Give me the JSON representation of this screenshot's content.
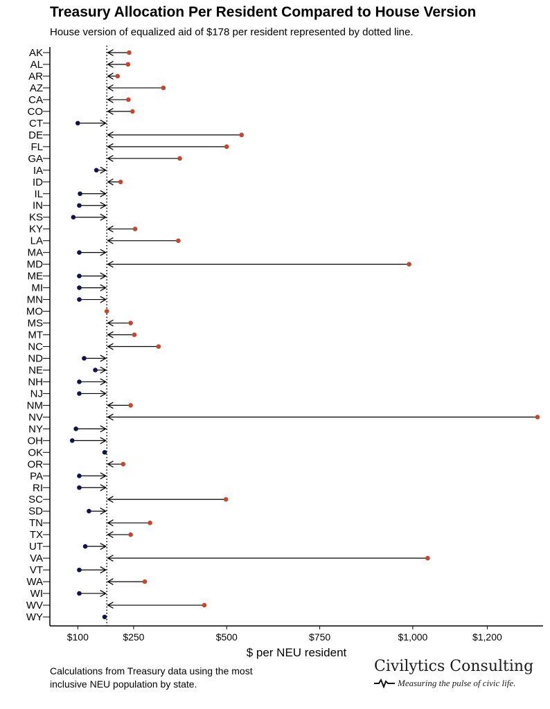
{
  "header": {
    "title": "Treasury Allocation Per Resident Compared to House Version",
    "subtitle": "House version of equalized aid of $178 per resident represented by dotted line."
  },
  "footer": {
    "note_line1": "Calculations from Treasury data using the most",
    "note_line2": "inclusive NEU population by state.",
    "brand_name": "Civilytics Consulting",
    "brand_tagline": "Measuring the pulse of civic life."
  },
  "colors": {
    "above": "#c8452a",
    "below": "#12124f",
    "line": "#000000"
  },
  "chart_data": {
    "type": "dot-arrow",
    "title": "Treasury Allocation Per Resident Compared to House Version",
    "subtitle": "House version of equalized aid of $178 per resident represented by dotted line.",
    "xlabel": "$ per NEU resident",
    "ylabel": "",
    "reference_value": 178,
    "xlim": [
      25,
      1350
    ],
    "x_ticks": [
      100,
      250,
      500,
      750,
      1000,
      1200
    ],
    "x_tick_labels": [
      "$100",
      "$250",
      "$500",
      "$750",
      "$1,000",
      "$1,200"
    ],
    "categories": [
      "AK",
      "AL",
      "AR",
      "AZ",
      "CA",
      "CO",
      "CT",
      "DE",
      "FL",
      "GA",
      "IA",
      "ID",
      "IL",
      "IN",
      "KS",
      "KY",
      "LA",
      "MA",
      "MD",
      "ME",
      "MI",
      "MN",
      "MO",
      "MS",
      "MT",
      "NC",
      "ND",
      "NE",
      "NH",
      "NJ",
      "NM",
      "NV",
      "NY",
      "OH",
      "OK",
      "OR",
      "PA",
      "RI",
      "SC",
      "SD",
      "TN",
      "TX",
      "UT",
      "VA",
      "VT",
      "WA",
      "WI",
      "WV",
      "WY"
    ],
    "values": [
      238,
      235,
      207,
      330,
      236,
      247,
      100,
      540,
      500,
      374,
      150,
      215,
      106,
      104,
      88,
      254,
      370,
      104,
      990,
      104,
      104,
      104,
      178,
      242,
      252,
      317,
      117,
      147,
      104,
      104,
      242,
      1335,
      95,
      85,
      172,
      222,
      104,
      104,
      498,
      130,
      294,
      242,
      120,
      1040,
      104,
      280,
      104,
      440,
      172
    ]
  }
}
